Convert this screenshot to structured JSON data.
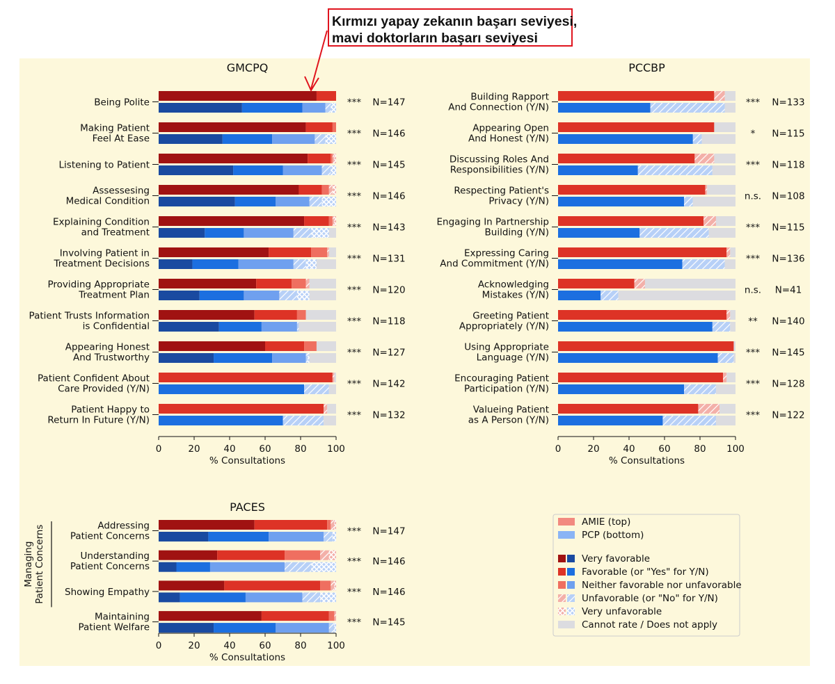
{
  "callout": {
    "line1": "Kırmızı yapay zekanın başarı seviyesi,",
    "line2": "mavi doktorların başarı seviyesi"
  },
  "colors": {
    "red": [
      "#a01212",
      "#dd3326",
      "#ef6f60",
      "#f28a80",
      "#f2a9a6"
    ],
    "blue": [
      "#1a4aa0",
      "#1c6fe0",
      "#6fa0ef",
      "#8ab4f5",
      "#a9c9f8"
    ],
    "na": "#dcdce0",
    "hatch_bg_red": "#f3b0a9",
    "hatch_bg_blue": "#b7d0f7"
  },
  "legend": {
    "amie": "AMIE (top)",
    "pcp": "PCP (bottom)",
    "categories": [
      "Very favorable",
      "Favorable (or \"Yes\" for Y/N)",
      "Neither favorable nor unfavorable",
      "Unfavorable (or \"No\" for Y/N)",
      "Very unfavorable",
      "Cannot rate / Does not apply"
    ]
  },
  "chart_data": [
    {
      "type": "bar",
      "stacked": true,
      "orientation": "horizontal",
      "title": "GMCPQ",
      "xlabel": "% Consultations",
      "xlim": [
        0,
        100
      ],
      "xticks": [
        0,
        20,
        40,
        60,
        80,
        100
      ],
      "segments": [
        "Very favorable",
        "Favorable",
        "Neither",
        "Unfavorable",
        "Very unfavorable",
        "Cannot rate"
      ],
      "items": [
        {
          "label": [
            "Being Polite"
          ],
          "sig": "***",
          "n": "N=147",
          "amie": [
            89,
            11,
            0,
            0,
            0,
            0
          ],
          "pcp": [
            47,
            34,
            13,
            3,
            3,
            0
          ]
        },
        {
          "label": [
            "Making Patient",
            "Feel At Ease"
          ],
          "sig": "***",
          "n": "N=146",
          "amie": [
            83,
            15,
            2,
            0,
            0,
            0
          ],
          "pcp": [
            36,
            28,
            24,
            6,
            6,
            0
          ]
        },
        {
          "label": [
            "Listening to Patient"
          ],
          "sig": "***",
          "n": "N=145",
          "amie": [
            84,
            13,
            1,
            1,
            1,
            0
          ],
          "pcp": [
            42,
            28,
            22,
            5,
            3,
            0
          ]
        },
        {
          "label": [
            "Assessesing",
            "Medical Condition"
          ],
          "sig": "***",
          "n": "N=146",
          "amie": [
            79,
            13,
            4,
            2,
            2,
            0
          ],
          "pcp": [
            43,
            23,
            19,
            7,
            8,
            0
          ]
        },
        {
          "label": [
            "Explaining Condition",
            "and Treatment"
          ],
          "sig": "***",
          "n": "N=143",
          "amie": [
            82,
            14,
            2,
            1,
            1,
            0
          ],
          "pcp": [
            26,
            22,
            28,
            10,
            10,
            4
          ]
        },
        {
          "label": [
            "Involving Patient in",
            "Treatment Decisions"
          ],
          "sig": "***",
          "n": "N=131",
          "amie": [
            62,
            24,
            9,
            1,
            0,
            4
          ],
          "pcp": [
            19,
            26,
            31,
            7,
            6,
            11
          ]
        },
        {
          "label": [
            "Providing Appropriate",
            "Treatment Plan"
          ],
          "sig": "***",
          "n": "N=120",
          "amie": [
            55,
            20,
            8,
            2,
            0,
            15
          ],
          "pcp": [
            23,
            25,
            20,
            10,
            7,
            15
          ]
        },
        {
          "label": [
            "Patient Trusts Information",
            "is Confidential"
          ],
          "sig": "***",
          "n": "N=118",
          "amie": [
            54,
            24,
            5,
            0,
            0,
            17
          ],
          "pcp": [
            34,
            24,
            20,
            1,
            0,
            21
          ]
        },
        {
          "label": [
            "Appearing Honest",
            "And Trustworthy"
          ],
          "sig": "***",
          "n": "N=127",
          "amie": [
            60,
            22,
            7,
            0,
            0,
            11
          ],
          "pcp": [
            31,
            33,
            19,
            1,
            1,
            15
          ]
        },
        {
          "label": [
            "Patient Confident About",
            "Care Provided (Y/N)"
          ],
          "sig": "***",
          "n": "N=142",
          "amie": [
            0,
            98,
            0,
            1,
            0,
            1
          ],
          "pcp": [
            0,
            82,
            0,
            14,
            0,
            4
          ]
        },
        {
          "label": [
            "Patient Happy to",
            "Return In Future (Y/N)"
          ],
          "sig": "***",
          "n": "N=132",
          "amie": [
            0,
            93,
            0,
            2,
            0,
            5
          ],
          "pcp": [
            0,
            70,
            0,
            23,
            0,
            7
          ]
        }
      ]
    },
    {
      "type": "bar",
      "stacked": true,
      "orientation": "horizontal",
      "title": "PCCBP",
      "xlabel": "% Consultations",
      "xlim": [
        0,
        100
      ],
      "xticks": [
        0,
        20,
        40,
        60,
        80,
        100
      ],
      "segments": [
        "Very favorable",
        "Favorable",
        "Neither",
        "Unfavorable",
        "Very unfavorable",
        "Cannot rate"
      ],
      "items": [
        {
          "label": [
            "Building Rapport",
            "And Connection (Y/N)"
          ],
          "sig": "***",
          "n": "N=133",
          "amie": [
            0,
            88,
            0,
            6,
            0,
            6
          ],
          "pcp": [
            0,
            52,
            0,
            42,
            0,
            6
          ]
        },
        {
          "label": [
            "Appearing Open",
            "And Honest (Y/N)"
          ],
          "sig": "*",
          "n": "N=115",
          "amie": [
            0,
            88,
            0,
            0,
            0,
            12
          ],
          "pcp": [
            0,
            76,
            0,
            5,
            0,
            19
          ]
        },
        {
          "label": [
            "Discussing Roles And",
            "Responsibilities (Y/N)"
          ],
          "sig": "***",
          "n": "N=118",
          "amie": [
            0,
            77,
            0,
            11,
            0,
            12
          ],
          "pcp": [
            0,
            45,
            0,
            42,
            0,
            13
          ]
        },
        {
          "label": [
            "Respecting Patient's",
            "Privacy (Y/N)"
          ],
          "sig": "n.s.",
          "n": "N=108",
          "amie": [
            0,
            83,
            0,
            1,
            0,
            16
          ],
          "pcp": [
            0,
            71,
            0,
            5,
            0,
            24
          ]
        },
        {
          "label": [
            "Engaging In Partnership",
            "Building (Y/N)"
          ],
          "sig": "***",
          "n": "N=115",
          "amie": [
            0,
            82,
            0,
            7,
            0,
            11
          ],
          "pcp": [
            0,
            46,
            0,
            39,
            0,
            15
          ]
        },
        {
          "label": [
            "Expressing Caring",
            "And Commitment (Y/N)"
          ],
          "sig": "***",
          "n": "N=136",
          "amie": [
            0,
            95,
            0,
            2,
            0,
            3
          ],
          "pcp": [
            0,
            70,
            0,
            24,
            0,
            6
          ]
        },
        {
          "label": [
            "Acknowledging",
            "Mistakes (Y/N)"
          ],
          "sig": "n.s.",
          "n": "N=41",
          "amie": [
            0,
            43,
            0,
            6,
            0,
            51
          ],
          "pcp": [
            0,
            24,
            0,
            10,
            0,
            66
          ]
        },
        {
          "label": [
            "Greeting Patient",
            "Appropriately (Y/N)"
          ],
          "sig": "**",
          "n": "N=140",
          "amie": [
            0,
            95,
            0,
            2,
            0,
            3
          ],
          "pcp": [
            0,
            87,
            0,
            10,
            0,
            3
          ]
        },
        {
          "label": [
            "Using Appropriate",
            "Language (Y/N)"
          ],
          "sig": "***",
          "n": "N=145",
          "amie": [
            0,
            99,
            0,
            0,
            0,
            1
          ],
          "pcp": [
            0,
            90,
            0,
            9,
            0,
            1
          ]
        },
        {
          "label": [
            "Encouraging Patient",
            "Participation (Y/N)"
          ],
          "sig": "***",
          "n": "N=128",
          "amie": [
            0,
            93,
            0,
            2,
            0,
            5
          ],
          "pcp": [
            0,
            71,
            0,
            18,
            0,
            11
          ]
        },
        {
          "label": [
            "Valueing Patient",
            "as A Person (Y/N)"
          ],
          "sig": "***",
          "n": "N=122",
          "amie": [
            0,
            79,
            0,
            12,
            0,
            9
          ],
          "pcp": [
            0,
            59,
            0,
            30,
            0,
            11
          ]
        }
      ]
    },
    {
      "type": "bar",
      "stacked": true,
      "orientation": "horizontal",
      "title": "PACES",
      "xlabel": "% Consultations",
      "xlim": [
        0,
        100
      ],
      "xticks": [
        0,
        20,
        40,
        60,
        80,
        100
      ],
      "group_label": [
        "Managing",
        "Patient Concerns"
      ],
      "segments": [
        "Very favorable",
        "Favorable",
        "Neither",
        "Unfavorable",
        "Very unfavorable",
        "Cannot rate"
      ],
      "items": [
        {
          "label": [
            "Addressing",
            "Patient Concerns"
          ],
          "sig": "***",
          "n": "N=147",
          "amie": [
            54,
            41,
            2,
            2,
            1,
            0
          ],
          "pcp": [
            28,
            34,
            31,
            5,
            2,
            0
          ]
        },
        {
          "label": [
            "Understanding",
            "Patient Concerns"
          ],
          "sig": "***",
          "n": "N=146",
          "amie": [
            33,
            38,
            20,
            5,
            4,
            0
          ],
          "pcp": [
            10,
            19,
            42,
            15,
            14,
            0
          ]
        },
        {
          "label": [
            "Showing Empathy"
          ],
          "sig": "***",
          "n": "N=146",
          "amie": [
            37,
            54,
            6,
            2,
            1,
            0
          ],
          "pcp": [
            12,
            37,
            32,
            10,
            9,
            0
          ]
        },
        {
          "label": [
            "Maintaining",
            "Patient Welfare"
          ],
          "sig": "***",
          "n": "N=145",
          "amie": [
            58,
            38,
            3,
            1,
            0,
            0
          ],
          "pcp": [
            31,
            35,
            30,
            3,
            1,
            0
          ]
        }
      ]
    }
  ]
}
